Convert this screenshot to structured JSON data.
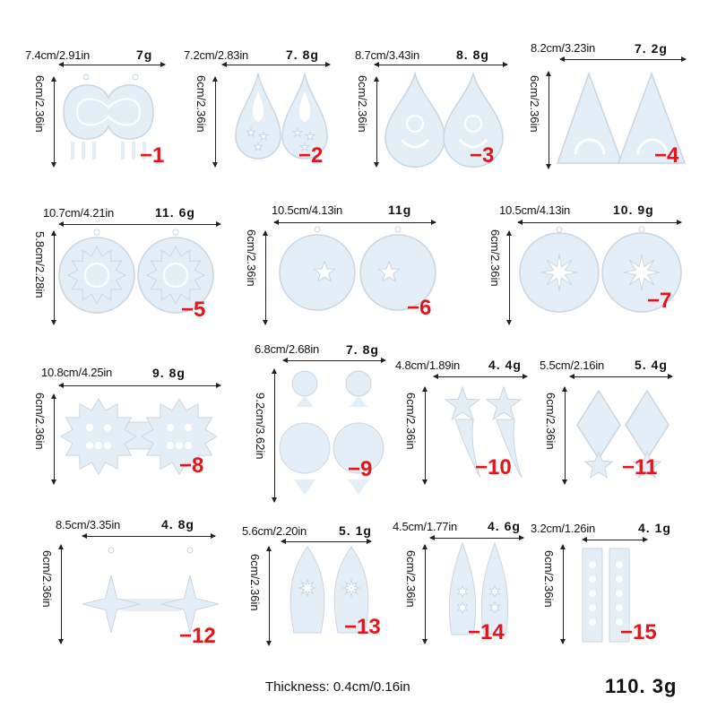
{
  "colors": {
    "mold": "#e4eef6",
    "mold_edge": "#c7d6e3",
    "number": "#e3141b"
  },
  "items": [
    {
      "width": "7.4cm/2.91in",
      "height": "6cm/2.36in",
      "weight": "7g",
      "number": "−1",
      "shape": "eight"
    },
    {
      "width": "7.2cm/2.83in",
      "height": "6cm/2.36in",
      "weight": "7. 8g",
      "number": "−2",
      "shape": "teardrops"
    },
    {
      "width": "8.7cm/3.43in",
      "height": "6cm/2.36in",
      "weight": "8. 8g",
      "number": "−3",
      "shape": "sun-drops"
    },
    {
      "width": "8.2cm/3.23in",
      "height": "6cm/2.36in",
      "weight": "7. 2g",
      "number": "−4",
      "shape": "triangles"
    },
    {
      "width": "10.7cm/4.21in",
      "height": "5.8cm/2.28in",
      "weight": "11. 6g",
      "number": "−5",
      "shape": "sun-circles"
    },
    {
      "width": "10.5cm/4.13in",
      "height": "6cm/2.36in",
      "weight": "11g",
      "number": "−6",
      "shape": "moon-circles"
    },
    {
      "width": "10.5cm/4.13in",
      "height": "6cm/2.36in",
      "weight": "10. 9g",
      "number": "−7",
      "shape": "star-circles"
    },
    {
      "width": "10.8cm/4.25in",
      "height": "6cm/2.36in",
      "weight": "9. 8g",
      "number": "−8",
      "shape": "flowers"
    },
    {
      "width": "6.8cm/2.68in",
      "height": "9.2cm/3.62in",
      "weight": "7. 8g",
      "number": "−9",
      "shape": "planets"
    },
    {
      "width": "4.8cm/1.89in",
      "height": "6cm/2.36in",
      "weight": "4. 4g",
      "number": "−10",
      "shape": "shooting-stars"
    },
    {
      "width": "5.5cm/2.16in",
      "height": "6cm/2.36in",
      "weight": "5. 4g",
      "number": "−11",
      "shape": "diamonds"
    },
    {
      "width": "8.5cm/3.35in",
      "height": "6cm/2.36in",
      "weight": "4. 8g",
      "number": "−12",
      "shape": "north-stars"
    },
    {
      "width": "5.6cm/2.20in",
      "height": "6cm/2.36in",
      "weight": "5. 1g",
      "number": "−13",
      "shape": "leaf-drops"
    },
    {
      "width": "4.5cm/1.77in",
      "height": "6cm/2.36in",
      "weight": "4. 6g",
      "number": "−14",
      "shape": "narrow-drops"
    },
    {
      "width": "3.2cm/1.26in",
      "height": "6cm/2.36in",
      "weight": "4. 1g",
      "number": "−15",
      "shape": "bars"
    }
  ],
  "footer": {
    "thickness": "Thickness: 0.4cm/0.16in",
    "total_weight": "110. 3g"
  }
}
